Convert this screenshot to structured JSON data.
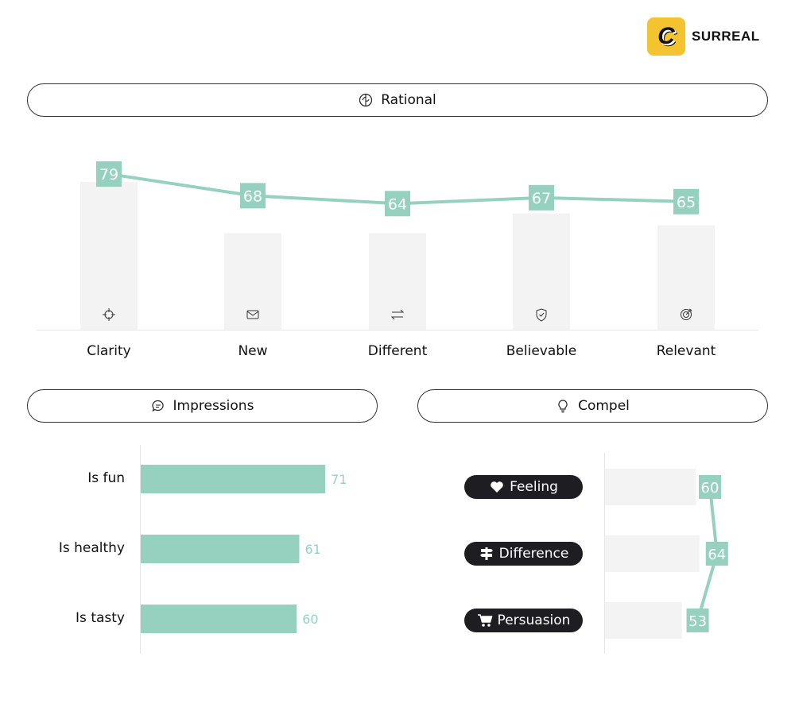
{
  "brand": {
    "logo_letter": "C",
    "name": "SURREAL"
  },
  "colors": {
    "accent": "#96d1c0",
    "benchmark": "#f3f3f3",
    "pill": "#1d1d22"
  },
  "sections": {
    "rational": "Rational",
    "impressions": "Impressions",
    "compel": "Compel"
  },
  "chart_data": [
    {
      "type": "bar+line",
      "title": "Rational",
      "categories": [
        "Clarity",
        "New",
        "Different",
        "Believable",
        "Relevant"
      ],
      "series": [
        {
          "name": "score",
          "type": "line",
          "values": [
            79,
            68,
            64,
            67,
            65
          ]
        },
        {
          "name": "benchmark",
          "type": "bar",
          "values": [
            75,
            49,
            49,
            59,
            53
          ]
        }
      ],
      "icons": [
        "crosshair-icon",
        "envelope-icon",
        "arrows-exchange-icon",
        "shield-check-icon",
        "target-icon"
      ],
      "ylim": [
        0,
        100
      ],
      "grid": false
    },
    {
      "type": "bar",
      "orientation": "horizontal",
      "title": "Impressions",
      "categories": [
        "Is fun",
        "Is healthy",
        "Is tasty"
      ],
      "values": [
        71,
        61,
        60
      ],
      "xlim": [
        0,
        100
      ]
    },
    {
      "type": "bar+line",
      "orientation": "horizontal",
      "title": "Compel",
      "categories": [
        "Feeling",
        "Difference",
        "Persuasion"
      ],
      "icons": [
        "heart-icon",
        "signpost-icon",
        "cart-icon"
      ],
      "series": [
        {
          "name": "score",
          "type": "line",
          "values": [
            60,
            64,
            53
          ]
        },
        {
          "name": "benchmark",
          "type": "bar",
          "values": [
            52,
            54,
            44
          ]
        }
      ],
      "xlim": [
        0,
        100
      ]
    }
  ]
}
